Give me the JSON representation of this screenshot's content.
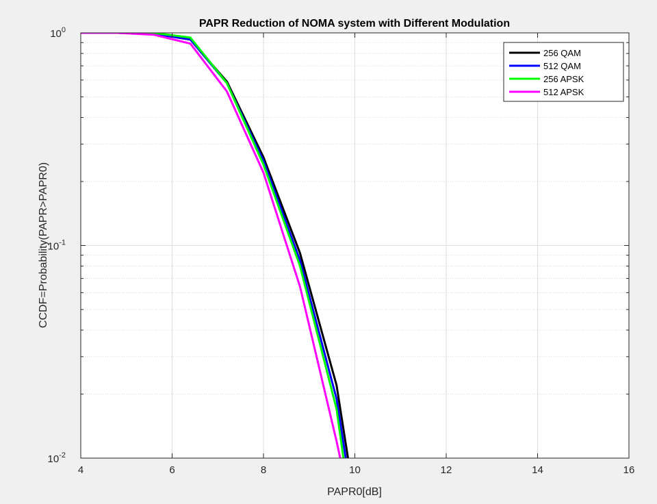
{
  "chart_data": {
    "type": "line",
    "title": "PAPR Reduction of NOMA system with Different Modulation",
    "xlabel": "PAPR0[dB]",
    "ylabel": "CCDF=Probability(PAPR>PAPR0)",
    "xlim": [
      4,
      16
    ],
    "ylim": [
      0.01,
      1
    ],
    "yscale": "log",
    "xticks": [
      4,
      6,
      8,
      10,
      12,
      14,
      16
    ],
    "yticks": [
      {
        "base": "10",
        "exp": "-2"
      },
      {
        "base": "10",
        "exp": "-1"
      },
      {
        "base": "10",
        "exp": "0"
      }
    ],
    "grid": true,
    "minor_grid": true,
    "legend_position": "top-right",
    "series": [
      {
        "name": "256 QAM",
        "color": "#000000",
        "x": [
          4.0,
          4.8,
          5.6,
          6.4,
          7.2,
          8.0,
          8.8,
          9.6,
          9.85
        ],
        "y": [
          1.0,
          1.0,
          0.99,
          0.93,
          0.59,
          0.26,
          0.092,
          0.022,
          0.01
        ]
      },
      {
        "name": "512 QAM",
        "color": "#0000ff",
        "x": [
          4.0,
          4.8,
          5.6,
          6.4,
          7.2,
          8.0,
          8.8,
          9.6,
          9.8
        ],
        "y": [
          1.0,
          1.0,
          0.99,
          0.93,
          0.58,
          0.25,
          0.085,
          0.019,
          0.01
        ]
      },
      {
        "name": "256 APSK",
        "color": "#00ff00",
        "x": [
          4.0,
          4.8,
          5.6,
          6.4,
          7.2,
          8.0,
          8.8,
          9.6,
          9.75
        ],
        "y": [
          1.0,
          1.0,
          1.0,
          0.95,
          0.58,
          0.24,
          0.08,
          0.017,
          0.01
        ]
      },
      {
        "name": "512 APSK",
        "color": "#ff00ff",
        "x": [
          4.0,
          4.8,
          5.6,
          6.4,
          7.2,
          8.0,
          8.8,
          9.6,
          9.68
        ],
        "y": [
          1.0,
          1.0,
          0.98,
          0.89,
          0.53,
          0.22,
          0.064,
          0.012,
          0.01
        ]
      }
    ]
  }
}
